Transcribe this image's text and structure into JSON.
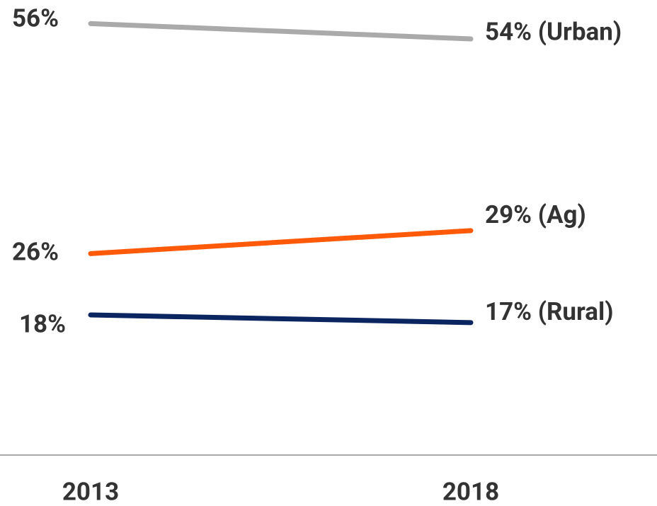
{
  "chart_data": {
    "type": "line",
    "categories": [
      "2013",
      "2018"
    ],
    "ylim": [
      0,
      60
    ],
    "series": [
      {
        "color": "#aaaaaa",
        "values": [
          56,
          54
        ],
        "value_labels": [
          "56%",
          "54% (Urban)"
        ]
      },
      {
        "color": "#ff5a0a",
        "values": [
          26,
          29
        ],
        "value_labels": [
          "26%",
          "29% (Ag)"
        ]
      },
      {
        "color": "#0b2560",
        "values": [
          18,
          17
        ],
        "value_labels": [
          "18%",
          "17% (Rural)"
        ]
      }
    ]
  }
}
